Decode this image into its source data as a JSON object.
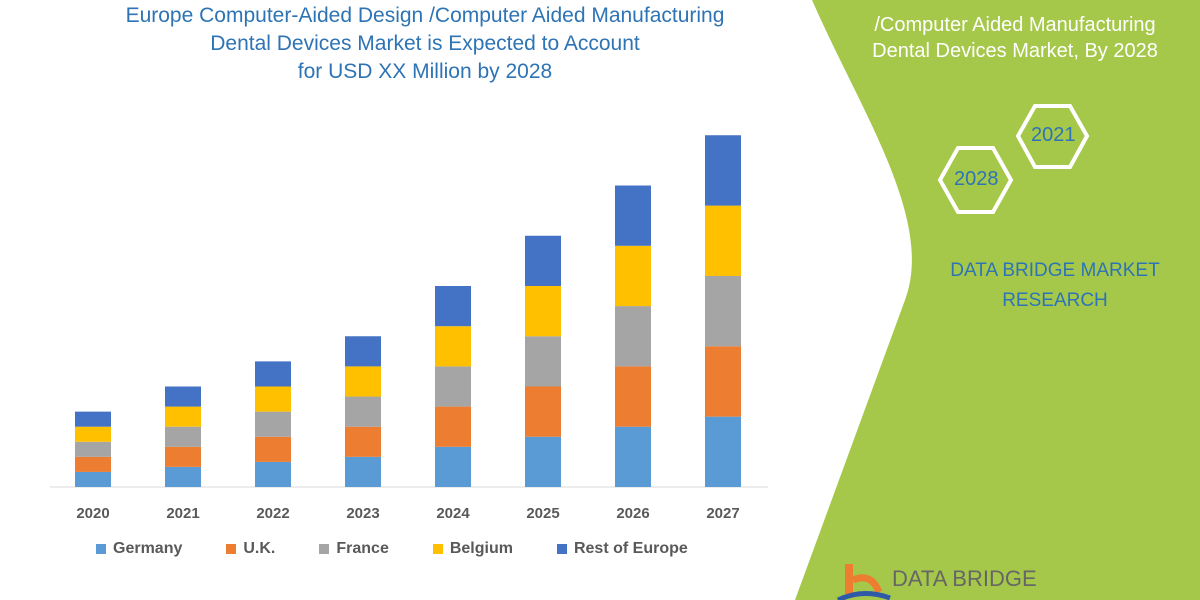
{
  "title_lines": [
    "Europe Computer-Aided Design /Computer Aided Manufacturing",
    "Dental Devices Market is Expected to Account",
    "for USD XX Million by 2028"
  ],
  "side_panel": {
    "title_lines": [
      "/Computer Aided Manufacturing",
      "Dental Devices Market, By 2028"
    ],
    "hex_years": [
      "2021",
      "2028"
    ],
    "brand_lines": [
      "DATA BRIDGE MARKET",
      "RESEARCH"
    ],
    "logo_text": "DATA BRIDGE",
    "panel_color": "#a5c84a"
  },
  "chart_data": {
    "type": "bar",
    "stacked": true,
    "categories": [
      "2020",
      "2021",
      "2022",
      "2023",
      "2024",
      "2025",
      "2026",
      "2027"
    ],
    "series": [
      {
        "name": "Germany",
        "color": "#5b9bd5",
        "values": [
          15,
          20,
          25,
          30,
          40,
          50,
          60,
          70
        ]
      },
      {
        "name": "U.K.",
        "color": "#ed7d31",
        "values": [
          15,
          20,
          25,
          30,
          40,
          50,
          60,
          70
        ]
      },
      {
        "name": "France",
        "color": "#a5a5a5",
        "values": [
          15,
          20,
          25,
          30,
          40,
          50,
          60,
          70
        ]
      },
      {
        "name": "Belgium",
        "color": "#ffc000",
        "values": [
          15,
          20,
          25,
          30,
          40,
          50,
          60,
          70
        ]
      },
      {
        "name": "Rest of Europe",
        "color": "#4472c4",
        "values": [
          15,
          20,
          25,
          30,
          40,
          50,
          60,
          70
        ]
      }
    ],
    "y_axis_shown": false,
    "grid": false,
    "legend_position": "bottom",
    "xlabel": "",
    "ylabel": ""
  }
}
